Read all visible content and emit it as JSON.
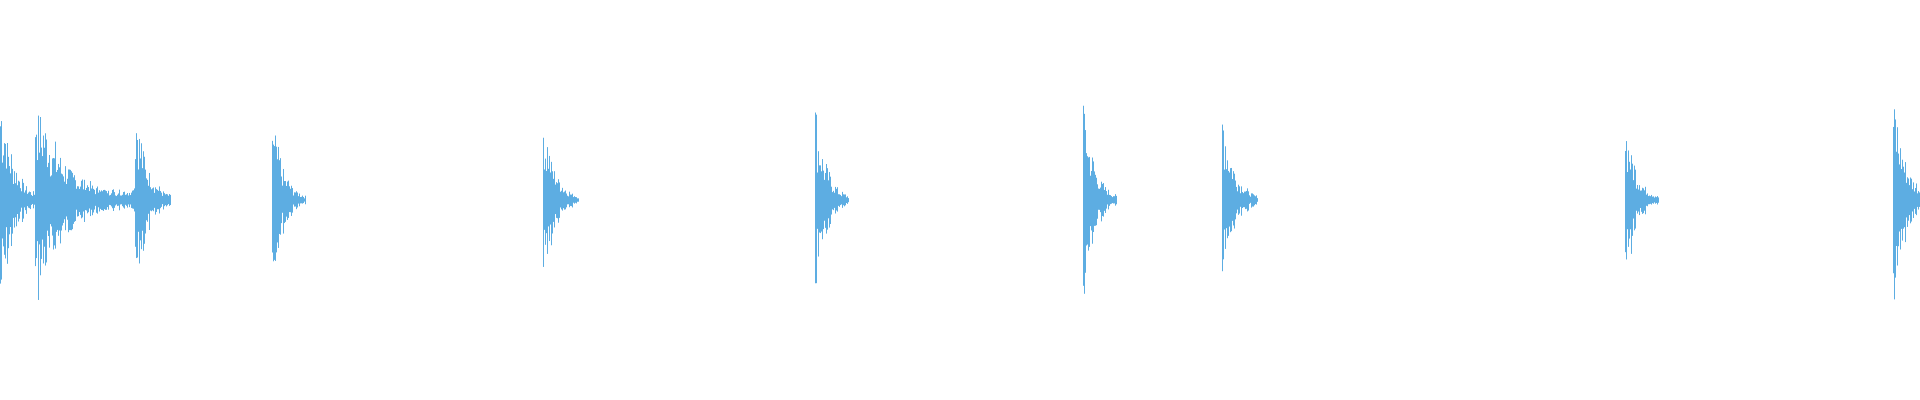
{
  "chart_data": {
    "type": "waveform",
    "title": "",
    "xlabel": "",
    "ylabel": "",
    "axes_visible": false,
    "grid": false,
    "legend": "none",
    "color": "#5dade2",
    "background": "#ffffff"
  }
}
